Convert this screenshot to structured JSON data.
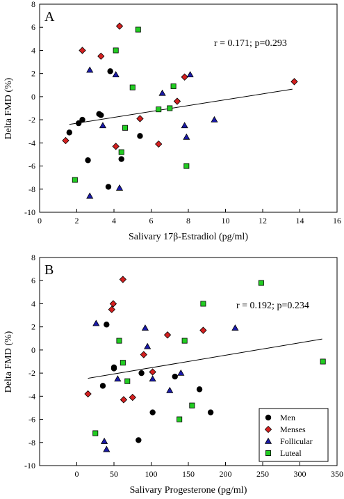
{
  "colors": {
    "men": "#000000",
    "menses": "#d42020",
    "follicular": "#1a1aa8",
    "luteal": "#22cc22",
    "regression": "#000000"
  },
  "chart_data": [
    {
      "type": "scatter",
      "panel_label": "A",
      "xlabel": "Salivary 17β-Estradiol (pg/ml)",
      "ylabel": "Delta FMD (%)",
      "annotation": "r = 0.171; p=0.293",
      "xlim": [
        0,
        16
      ],
      "ylim": [
        -10,
        8
      ],
      "xticks": [
        0,
        2,
        4,
        6,
        8,
        10,
        12,
        14,
        16
      ],
      "yticks": [
        -10,
        -8,
        -6,
        -4,
        -2,
        0,
        2,
        4,
        6,
        8
      ],
      "grid": false,
      "regression": {
        "x": [
          1.6,
          13.6
        ],
        "y": [
          -2.4,
          0.65
        ]
      },
      "series": [
        {
          "name": "Men",
          "marker": "circle",
          "color": "#000000",
          "x": [
            1.6,
            2.1,
            2.3,
            2.6,
            3.2,
            3.3,
            3.8,
            3.7,
            4.4,
            5.4
          ],
          "y": [
            -3.1,
            -2.3,
            -2.0,
            -5.5,
            -1.5,
            -1.6,
            2.2,
            -7.8,
            -5.4,
            -3.4
          ]
        },
        {
          "name": "Menses",
          "marker": "diamond",
          "color": "#d42020",
          "x": [
            1.4,
            2.3,
            3.3,
            4.1,
            4.3,
            5.4,
            6.4,
            7.4,
            7.8,
            13.7
          ],
          "y": [
            -3.8,
            4.0,
            3.5,
            -4.3,
            6.1,
            -1.9,
            -4.1,
            -0.4,
            1.7,
            1.3
          ]
        },
        {
          "name": "Follicular",
          "marker": "triangle",
          "color": "#1a1aa8",
          "x": [
            2.7,
            2.7,
            3.4,
            4.1,
            4.3,
            6.6,
            7.8,
            7.9,
            8.1,
            9.4
          ],
          "y": [
            2.3,
            -8.6,
            -2.5,
            1.9,
            -7.9,
            0.3,
            -2.5,
            -3.5,
            1.9,
            -2.0
          ]
        },
        {
          "name": "Luteal",
          "marker": "square",
          "color": "#22cc22",
          "x": [
            1.9,
            4.1,
            4.4,
            4.6,
            5.0,
            5.3,
            6.4,
            7.0,
            7.2,
            7.9
          ],
          "y": [
            -7.2,
            4.0,
            -4.8,
            -2.7,
            0.8,
            5.8,
            -1.1,
            -1.0,
            0.9,
            -6.0
          ]
        }
      ]
    },
    {
      "type": "scatter",
      "panel_label": "B",
      "xlabel": "Salivary Progesterone (pg/ml)",
      "ylabel": "Delta FMD (%)",
      "annotation": "r = 0.192; p=0.234",
      "xlim": [
        -50,
        350
      ],
      "ylim": [
        -10,
        8
      ],
      "xticks": [
        0,
        50,
        100,
        150,
        200,
        250,
        300,
        350
      ],
      "yticks": [
        -10,
        -8,
        -6,
        -4,
        -2,
        0,
        2,
        4,
        6,
        8
      ],
      "grid": false,
      "legend_position": "bottom-right",
      "regression": {
        "x": [
          15,
          330
        ],
        "y": [
          -2.45,
          0.95
        ]
      },
      "series": [
        {
          "name": "Men",
          "marker": "circle",
          "color": "#000000",
          "x": [
            35,
            40,
            50,
            50,
            83,
            87,
            102,
            132,
            165,
            180
          ],
          "y": [
            -3.1,
            2.2,
            -1.5,
            -1.6,
            -7.8,
            -2.0,
            -5.4,
            -2.3,
            -3.4,
            -5.4
          ]
        },
        {
          "name": "Menses",
          "marker": "diamond",
          "color": "#d42020",
          "x": [
            15,
            47,
            49,
            62,
            63,
            75,
            90,
            102,
            122,
            170
          ],
          "y": [
            -3.8,
            3.5,
            4.0,
            6.1,
            -4.3,
            -4.1,
            -0.4,
            -1.9,
            1.3,
            1.7
          ]
        },
        {
          "name": "Follicular",
          "marker": "triangle",
          "color": "#1a1aa8",
          "x": [
            26,
            37,
            40,
            55,
            92,
            95,
            102,
            125,
            140,
            213
          ],
          "y": [
            2.3,
            -7.9,
            -8.6,
            -2.5,
            1.9,
            0.3,
            -2.5,
            -3.5,
            -2.0,
            1.9
          ]
        },
        {
          "name": "Luteal",
          "marker": "square",
          "color": "#22cc22",
          "x": [
            25,
            57,
            62,
            68,
            138,
            145,
            155,
            170,
            248,
            331
          ],
          "y": [
            -7.2,
            0.8,
            -1.1,
            -2.7,
            -6.0,
            0.8,
            -4.8,
            4.0,
            5.8,
            -1.0
          ]
        }
      ]
    }
  ]
}
